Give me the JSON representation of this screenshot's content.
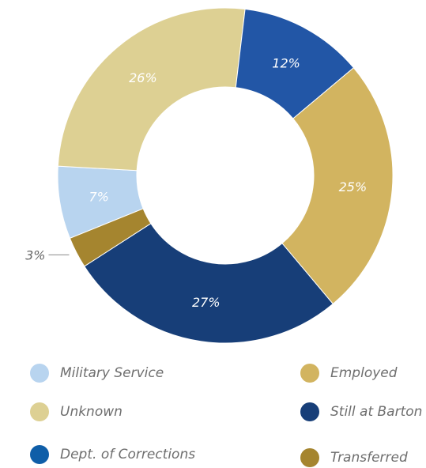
{
  "chart_data": {
    "type": "pie",
    "title": "",
    "categories": [
      "Military Service",
      "Unknown",
      "Dept. of Corrections",
      "Employed",
      "Still at Barton",
      "Transferred"
    ],
    "values": [
      7,
      26,
      12,
      25,
      27,
      3
    ],
    "labels": [
      "7%",
      "26%",
      "12%",
      "25%",
      "27%",
      "3%"
    ],
    "colors": [
      "#b8d4ef",
      "#ddd093",
      "#2256a6",
      "#d2b460",
      "#173e78",
      "#a5852f"
    ],
    "donut": true,
    "legend_position": "bottom"
  },
  "legend": [
    {
      "label": "Military Service",
      "color": "#b8d4ef"
    },
    {
      "label": "Unknown",
      "color": "#ddd093"
    },
    {
      "label": "Dept. of Corrections",
      "color": "#0f5ea8"
    },
    {
      "label": "Employed",
      "color": "#d2b460"
    },
    {
      "label": "Still at Barton",
      "color": "#173e78"
    },
    {
      "label": "Transferred",
      "color": "#a5852f"
    }
  ]
}
